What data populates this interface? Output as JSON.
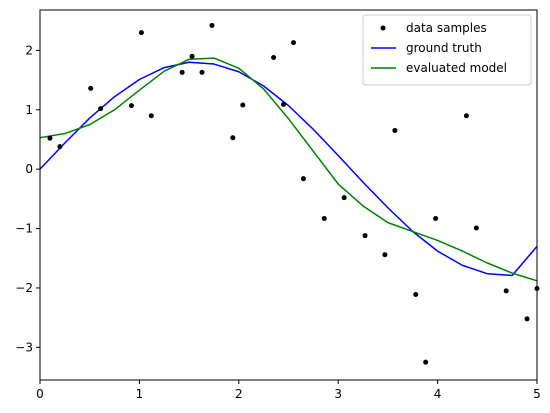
{
  "chart_data": {
    "type": "line",
    "title": "",
    "xlabel": "",
    "ylabel": "",
    "xlim": [
      0,
      5
    ],
    "ylim": [
      -3.55,
      2.68
    ],
    "xticks": [
      0,
      1,
      2,
      3,
      4,
      5
    ],
    "yticks": [
      -3,
      -2,
      -1,
      0,
      1,
      2
    ],
    "xtick_labels": [
      "0",
      "1",
      "2",
      "3",
      "4",
      "5"
    ],
    "ytick_labels": [
      "−3",
      "−2",
      "−1",
      "0",
      "1",
      "2"
    ],
    "grid": false,
    "legend_position": "top-right",
    "series": [
      {
        "name": "data samples",
        "kind": "scatter",
        "color": "#000000",
        "x": [
          0.1,
          0.2,
          0.51,
          0.61,
          0.92,
          1.02,
          1.12,
          1.43,
          1.53,
          1.63,
          1.73,
          1.94,
          2.04,
          2.35,
          2.45,
          2.55,
          2.65,
          2.86,
          3.06,
          3.27,
          3.47,
          3.57,
          3.78,
          3.88,
          3.98,
          4.29,
          4.39,
          4.69,
          4.9,
          5.0
        ],
        "y": [
          0.52,
          0.38,
          1.36,
          1.02,
          1.07,
          2.3,
          0.9,
          1.63,
          1.9,
          1.63,
          2.42,
          0.53,
          1.08,
          1.88,
          1.09,
          2.13,
          -0.16,
          -0.83,
          -0.48,
          -1.12,
          -1.44,
          0.65,
          -2.11,
          -3.25,
          -0.83,
          0.9,
          -0.99,
          -2.05,
          -2.52,
          -2.01
        ]
      },
      {
        "name": "ground truth",
        "kind": "line",
        "color": "#0000ff",
        "x": [
          0,
          0.25,
          0.5,
          0.75,
          1.0,
          1.25,
          1.5,
          1.75,
          2.0,
          2.25,
          2.5,
          2.75,
          3.0,
          3.25,
          3.5,
          3.75,
          4.0,
          4.25,
          4.5,
          4.75,
          5.0
        ],
        "y": [
          0.0,
          0.44,
          0.86,
          1.22,
          1.51,
          1.71,
          1.8,
          1.77,
          1.64,
          1.4,
          1.07,
          0.67,
          0.23,
          -0.22,
          -0.65,
          -1.05,
          -1.38,
          -1.62,
          -1.76,
          -1.79,
          -1.3
        ]
      },
      {
        "name": "evaluated model",
        "kind": "line",
        "color": "#008000",
        "x": [
          0,
          0.25,
          0.5,
          0.75,
          1.0,
          1.25,
          1.5,
          1.75,
          2.0,
          2.25,
          2.5,
          2.75,
          3.0,
          3.25,
          3.5,
          3.75,
          4.0,
          4.25,
          4.5,
          4.75,
          5.0
        ],
        "y": [
          0.53,
          0.6,
          0.75,
          1.0,
          1.33,
          1.65,
          1.85,
          1.87,
          1.7,
          1.35,
          0.85,
          0.3,
          -0.25,
          -0.62,
          -0.9,
          -1.05,
          -1.2,
          -1.38,
          -1.58,
          -1.75,
          -1.88
        ]
      }
    ]
  }
}
